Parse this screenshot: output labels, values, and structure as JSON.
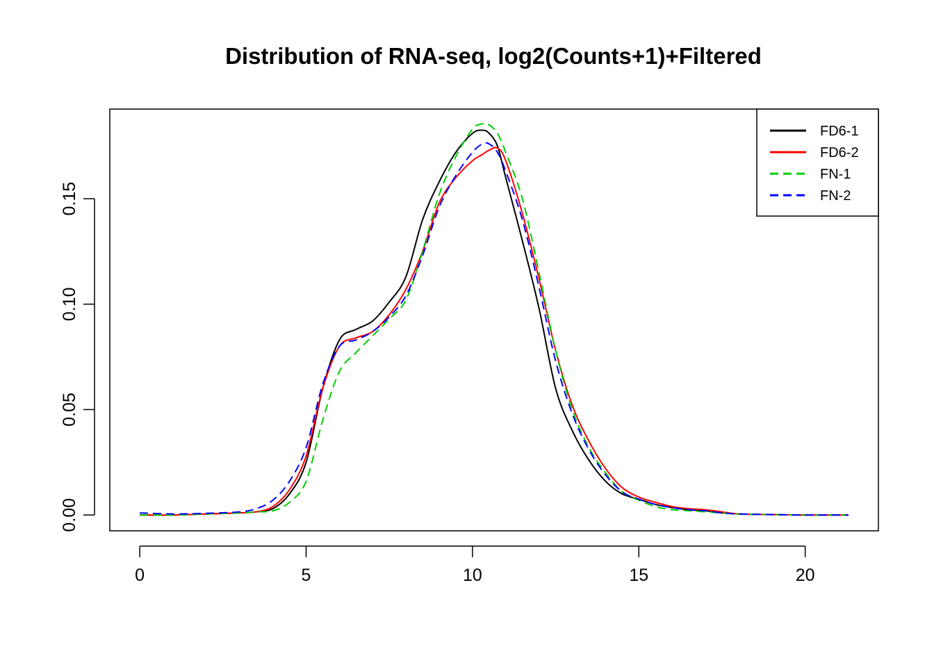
{
  "chart_data": {
    "type": "line",
    "title": "Distribution of RNA-seq, log2(Counts+1)+Filtered",
    "xlabel": "",
    "ylabel": "",
    "xlim": [
      -0.9,
      22.2
    ],
    "ylim": [
      -0.0075,
      0.1925
    ],
    "xticks": [
      0,
      5,
      10,
      15,
      20
    ],
    "xtick_labels": [
      "0",
      "5",
      "10",
      "15",
      "20"
    ],
    "yticks": [
      0.0,
      0.05,
      0.1,
      0.15
    ],
    "ytick_labels": [
      "0.00",
      "0.05",
      "0.10",
      "0.15"
    ],
    "grid": false,
    "legend_position": "top-right",
    "series": [
      {
        "name": "FD6-1",
        "color": "#000000",
        "dash": "solid",
        "x": [
          0,
          1,
          2,
          3,
          3.5,
          4,
          4.5,
          5,
          5.5,
          6,
          6.5,
          7,
          7.5,
          8,
          8.5,
          9,
          9.5,
          10,
          10.3,
          10.5,
          10.75,
          11,
          11.5,
          12,
          12.5,
          13,
          13.5,
          14,
          14.5,
          15,
          15.5,
          16,
          16.5,
          17,
          17.5,
          18,
          19,
          20,
          21.3
        ],
        "y": [
          0.0,
          0.0,
          0.0005,
          0.001,
          0.0015,
          0.003,
          0.01,
          0.025,
          0.06,
          0.083,
          0.088,
          0.092,
          0.101,
          0.113,
          0.14,
          0.158,
          0.172,
          0.181,
          0.1825,
          0.181,
          0.175,
          0.16,
          0.13,
          0.098,
          0.06,
          0.04,
          0.026,
          0.016,
          0.01,
          0.0075,
          0.005,
          0.0035,
          0.0025,
          0.002,
          0.001,
          0.0005,
          0.0002,
          0.0,
          0.0
        ]
      },
      {
        "name": "FD6-2",
        "color": "#ff0000",
        "dash": "solid",
        "x": [
          0,
          1,
          2,
          3,
          3.5,
          4,
          4.5,
          5,
          5.5,
          6,
          6.5,
          7,
          7.5,
          8,
          8.5,
          9,
          9.5,
          10,
          10.3,
          10.5,
          10.75,
          11,
          11.5,
          12,
          12.5,
          13,
          13.5,
          14,
          14.5,
          15,
          15.5,
          16,
          16.5,
          17,
          17.5,
          18,
          19,
          20,
          21.3
        ],
        "y": [
          0.0,
          0.0,
          0.0005,
          0.001,
          0.0015,
          0.004,
          0.012,
          0.028,
          0.06,
          0.08,
          0.084,
          0.087,
          0.095,
          0.107,
          0.125,
          0.148,
          0.16,
          0.168,
          0.171,
          0.173,
          0.174,
          0.168,
          0.143,
          0.112,
          0.078,
          0.052,
          0.035,
          0.022,
          0.013,
          0.0085,
          0.006,
          0.004,
          0.003,
          0.0025,
          0.0015,
          0.0005,
          0.0002,
          0.0,
          0.0
        ]
      },
      {
        "name": "FN-1",
        "color": "#00cd00",
        "dash": "dashed",
        "x": [
          0,
          1,
          2,
          3,
          3.5,
          4,
          4.5,
          5,
          5.5,
          6,
          6.5,
          7,
          7.5,
          8,
          8.5,
          9,
          9.5,
          10,
          10.3,
          10.5,
          10.75,
          11,
          11.5,
          12,
          12.5,
          13,
          13.5,
          14,
          14.5,
          15,
          15.5,
          16,
          16.5,
          17,
          17.5,
          18,
          19,
          20,
          21.3
        ],
        "y": [
          0.0,
          0.0,
          0.0005,
          0.001,
          0.0015,
          0.002,
          0.006,
          0.016,
          0.045,
          0.068,
          0.077,
          0.085,
          0.093,
          0.102,
          0.125,
          0.152,
          0.17,
          0.183,
          0.1855,
          0.185,
          0.181,
          0.172,
          0.15,
          0.115,
          0.078,
          0.05,
          0.032,
          0.02,
          0.011,
          0.007,
          0.004,
          0.0025,
          0.002,
          0.0015,
          0.001,
          0.0005,
          0.0002,
          0.0,
          0.0
        ]
      },
      {
        "name": "FN-2",
        "color": "#0000ff",
        "dash": "dashed",
        "x": [
          0,
          1,
          2,
          3,
          3.5,
          4,
          4.5,
          5,
          5.5,
          6,
          6.5,
          7,
          7.5,
          8,
          8.5,
          9,
          9.5,
          10,
          10.3,
          10.5,
          10.75,
          11,
          11.5,
          12,
          12.5,
          13,
          13.5,
          14,
          14.5,
          15,
          15.5,
          16,
          16.5,
          17,
          17.5,
          18,
          19,
          20,
          21.3
        ],
        "y": [
          0.001,
          0.0005,
          0.0008,
          0.0015,
          0.003,
          0.007,
          0.016,
          0.032,
          0.062,
          0.08,
          0.083,
          0.087,
          0.094,
          0.104,
          0.123,
          0.146,
          0.161,
          0.172,
          0.176,
          0.176,
          0.172,
          0.163,
          0.14,
          0.108,
          0.073,
          0.048,
          0.031,
          0.019,
          0.011,
          0.0075,
          0.005,
          0.0035,
          0.0025,
          0.002,
          0.001,
          0.0005,
          0.0002,
          0.0,
          0.0
        ]
      }
    ]
  }
}
